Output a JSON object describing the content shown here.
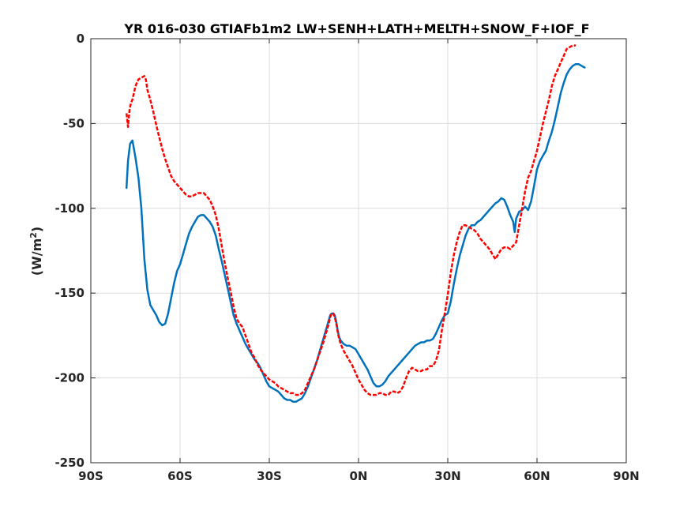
{
  "chart_data": {
    "type": "line",
    "title": "YR 016-030 GTIAFb1m2 LW+SENH+LATH+MELTH+SNOW_F+IOF_F",
    "xlabel": "",
    "ylabel": "(W/m",
    "ylabel_sup": "2",
    "ylabel_close": ")",
    "xlim": [
      -90,
      90
    ],
    "ylim": [
      -250,
      0
    ],
    "x_ticks": [
      -90,
      -60,
      -30,
      0,
      30,
      60,
      90
    ],
    "x_tick_labels": [
      "90S",
      "60S",
      "30S",
      "0N",
      "30N",
      "60N",
      "90N"
    ],
    "y_ticks": [
      0,
      -50,
      -100,
      -150,
      -200,
      -250
    ],
    "y_tick_labels": [
      "0",
      "-50",
      "-100",
      "-150",
      "-200",
      "-250"
    ],
    "grid": true,
    "series": [
      {
        "color": "#0072bd",
        "line_style": "solid",
        "points": [
          [
            -78,
            -88
          ],
          [
            -77.5,
            -72
          ],
          [
            -76.8,
            -62
          ],
          [
            -76,
            -60
          ],
          [
            -75,
            -70
          ],
          [
            -74,
            -82
          ],
          [
            -73,
            -100
          ],
          [
            -72,
            -130
          ],
          [
            -71,
            -148
          ],
          [
            -70,
            -157
          ],
          [
            -69,
            -160
          ],
          [
            -68,
            -163
          ],
          [
            -67,
            -167
          ],
          [
            -66,
            -169
          ],
          [
            -65,
            -168
          ],
          [
            -64,
            -162
          ],
          [
            -63,
            -153
          ],
          [
            -62,
            -144
          ],
          [
            -61,
            -137
          ],
          [
            -60,
            -133
          ],
          [
            -59,
            -127
          ],
          [
            -58,
            -121
          ],
          [
            -57,
            -115
          ],
          [
            -56,
            -111
          ],
          [
            -55,
            -108
          ],
          [
            -54,
            -105
          ],
          [
            -53,
            -104
          ],
          [
            -52,
            -104
          ],
          [
            -51,
            -106
          ],
          [
            -50,
            -108
          ],
          [
            -49,
            -111
          ],
          [
            -48,
            -116
          ],
          [
            -47,
            -124
          ],
          [
            -46,
            -131
          ],
          [
            -45,
            -139
          ],
          [
            -44,
            -147
          ],
          [
            -43,
            -155
          ],
          [
            -42,
            -163
          ],
          [
            -41,
            -168
          ],
          [
            -40,
            -172
          ],
          [
            -39,
            -176
          ],
          [
            -38,
            -180
          ],
          [
            -37,
            -183
          ],
          [
            -36,
            -186
          ],
          [
            -35,
            -189
          ],
          [
            -34,
            -191
          ],
          [
            -33,
            -194
          ],
          [
            -32,
            -198
          ],
          [
            -31,
            -202
          ],
          [
            -30,
            -205
          ],
          [
            -29,
            -206
          ],
          [
            -28,
            -207
          ],
          [
            -27,
            -208
          ],
          [
            -26,
            -210
          ],
          [
            -25,
            -212
          ],
          [
            -24,
            -213
          ],
          [
            -23,
            -213
          ],
          [
            -22,
            -214
          ],
          [
            -21,
            -214
          ],
          [
            -20,
            -213
          ],
          [
            -19,
            -212
          ],
          [
            -18,
            -209
          ],
          [
            -17,
            -205
          ],
          [
            -16,
            -200
          ],
          [
            -15,
            -195
          ],
          [
            -14,
            -190
          ],
          [
            -13,
            -184
          ],
          [
            -12,
            -178
          ],
          [
            -11,
            -172
          ],
          [
            -10,
            -166
          ],
          [
            -9.5,
            -163
          ],
          [
            -9,
            -162
          ],
          [
            -8.5,
            -162
          ],
          [
            -8,
            -163
          ],
          [
            -7.5,
            -167
          ],
          [
            -7,
            -172
          ],
          [
            -6.5,
            -176
          ],
          [
            -6,
            -178
          ],
          [
            -5,
            -180
          ],
          [
            -4,
            -181
          ],
          [
            -3,
            -181
          ],
          [
            -2,
            -182
          ],
          [
            -1,
            -183
          ],
          [
            0,
            -186
          ],
          [
            1,
            -189
          ],
          [
            2,
            -192
          ],
          [
            3,
            -195
          ],
          [
            4,
            -199
          ],
          [
            5,
            -203
          ],
          [
            6,
            -205
          ],
          [
            7,
            -205
          ],
          [
            8,
            -204
          ],
          [
            9,
            -202
          ],
          [
            10,
            -199
          ],
          [
            11,
            -197
          ],
          [
            12,
            -195
          ],
          [
            13,
            -193
          ],
          [
            14,
            -191
          ],
          [
            15,
            -189
          ],
          [
            16,
            -187
          ],
          [
            17,
            -185
          ],
          [
            18,
            -183
          ],
          [
            19,
            -181
          ],
          [
            20,
            -180
          ],
          [
            21,
            -179
          ],
          [
            22,
            -179
          ],
          [
            23,
            -178
          ],
          [
            24,
            -178
          ],
          [
            25,
            -177
          ],
          [
            26,
            -174
          ],
          [
            27,
            -170
          ],
          [
            28,
            -166
          ],
          [
            29,
            -163
          ],
          [
            30,
            -162
          ],
          [
            31,
            -155
          ],
          [
            32,
            -145
          ],
          [
            33,
            -136
          ],
          [
            34,
            -128
          ],
          [
            35,
            -122
          ],
          [
            36,
            -116
          ],
          [
            37,
            -112
          ],
          [
            38,
            -110
          ],
          [
            39,
            -110
          ],
          [
            40,
            -108
          ],
          [
            41,
            -107
          ],
          [
            42,
            -105
          ],
          [
            43,
            -103
          ],
          [
            44,
            -101
          ],
          [
            45,
            -99
          ],
          [
            46,
            -97
          ],
          [
            47,
            -96
          ],
          [
            48,
            -94
          ],
          [
            49,
            -95
          ],
          [
            50,
            -99
          ],
          [
            51,
            -104
          ],
          [
            52,
            -108
          ],
          [
            52.5,
            -114
          ],
          [
            53,
            -106
          ],
          [
            54,
            -102
          ],
          [
            55,
            -101
          ],
          [
            56,
            -99
          ],
          [
            57,
            -101
          ],
          [
            58,
            -96
          ],
          [
            59,
            -87
          ],
          [
            60,
            -77
          ],
          [
            61,
            -72
          ],
          [
            62,
            -69
          ],
          [
            63,
            -66
          ],
          [
            64,
            -60
          ],
          [
            65,
            -55
          ],
          [
            66,
            -48
          ],
          [
            67,
            -40
          ],
          [
            68,
            -32
          ],
          [
            69,
            -26
          ],
          [
            70,
            -21
          ],
          [
            71,
            -18
          ],
          [
            72,
            -16
          ],
          [
            73,
            -15
          ],
          [
            74,
            -15
          ],
          [
            75,
            -16
          ],
          [
            76,
            -17
          ]
        ]
      },
      {
        "color": "#ff0000",
        "line_style": "dashed",
        "points": [
          [
            -78,
            -44
          ],
          [
            -77.5,
            -52
          ],
          [
            -77,
            -42
          ],
          [
            -76.5,
            -38
          ],
          [
            -76,
            -36
          ],
          [
            -75.5,
            -32
          ],
          [
            -75,
            -28
          ],
          [
            -74,
            -24
          ],
          [
            -73,
            -23
          ],
          [
            -72,
            -22
          ],
          [
            -71.5,
            -24
          ],
          [
            -71,
            -30
          ],
          [
            -70,
            -36
          ],
          [
            -69,
            -43
          ],
          [
            -68,
            -51
          ],
          [
            -67,
            -58
          ],
          [
            -66,
            -65
          ],
          [
            -65,
            -71
          ],
          [
            -64,
            -76
          ],
          [
            -63,
            -81
          ],
          [
            -62,
            -84
          ],
          [
            -61,
            -86
          ],
          [
            -60,
            -88
          ],
          [
            -59,
            -90
          ],
          [
            -58,
            -92
          ],
          [
            -57,
            -93
          ],
          [
            -56,
            -93
          ],
          [
            -55,
            -92
          ],
          [
            -54,
            -91
          ],
          [
            -53,
            -91
          ],
          [
            -52,
            -91
          ],
          [
            -51,
            -93
          ],
          [
            -50,
            -95
          ],
          [
            -49,
            -99
          ],
          [
            -48,
            -104
          ],
          [
            -47,
            -112
          ],
          [
            -46,
            -122
          ],
          [
            -45,
            -132
          ],
          [
            -44,
            -141
          ],
          [
            -43,
            -149
          ],
          [
            -42,
            -158
          ],
          [
            -41,
            -165
          ],
          [
            -40,
            -168
          ],
          [
            -39,
            -170
          ],
          [
            -38,
            -175
          ],
          [
            -37,
            -180
          ],
          [
            -36,
            -185
          ],
          [
            -35,
            -188
          ],
          [
            -34,
            -192
          ],
          [
            -33,
            -195
          ],
          [
            -32,
            -197
          ],
          [
            -31,
            -199
          ],
          [
            -30,
            -201
          ],
          [
            -29,
            -202
          ],
          [
            -28,
            -203
          ],
          [
            -27,
            -205
          ],
          [
            -26,
            -206
          ],
          [
            -25,
            -207
          ],
          [
            -24,
            -208
          ],
          [
            -23,
            -209
          ],
          [
            -22,
            -209
          ],
          [
            -21,
            -210
          ],
          [
            -20,
            -210
          ],
          [
            -19,
            -209
          ],
          [
            -18,
            -207
          ],
          [
            -17,
            -203
          ],
          [
            -16,
            -199
          ],
          [
            -15,
            -195
          ],
          [
            -14,
            -190
          ],
          [
            -13,
            -185
          ],
          [
            -12,
            -180
          ],
          [
            -11,
            -174
          ],
          [
            -10,
            -168
          ],
          [
            -9.5,
            -164
          ],
          [
            -9,
            -162
          ],
          [
            -8.5,
            -162
          ],
          [
            -8,
            -164
          ],
          [
            -7.5,
            -168
          ],
          [
            -7,
            -173
          ],
          [
            -6.5,
            -177
          ],
          [
            -6,
            -180
          ],
          [
            -5,
            -184
          ],
          [
            -4,
            -187
          ],
          [
            -3,
            -190
          ],
          [
            -2,
            -193
          ],
          [
            -1,
            -197
          ],
          [
            0,
            -201
          ],
          [
            1,
            -204
          ],
          [
            2,
            -207
          ],
          [
            3,
            -209
          ],
          [
            4,
            -210
          ],
          [
            5,
            -210
          ],
          [
            6,
            -210
          ],
          [
            7,
            -209
          ],
          [
            8,
            -209
          ],
          [
            9,
            -210
          ],
          [
            10,
            -210
          ],
          [
            11,
            -208
          ],
          [
            12,
            -208
          ],
          [
            13,
            -209
          ],
          [
            14,
            -208
          ],
          [
            15,
            -205
          ],
          [
            16,
            -200
          ],
          [
            17,
            -196
          ],
          [
            18,
            -194
          ],
          [
            19,
            -195
          ],
          [
            20,
            -196
          ],
          [
            21,
            -196
          ],
          [
            22,
            -195
          ],
          [
            23,
            -195
          ],
          [
            24,
            -193
          ],
          [
            25,
            -193
          ],
          [
            26,
            -190
          ],
          [
            27,
            -184
          ],
          [
            28,
            -172
          ],
          [
            29,
            -162
          ],
          [
            30,
            -151
          ],
          [
            31,
            -138
          ],
          [
            32,
            -128
          ],
          [
            33,
            -120
          ],
          [
            34,
            -114
          ],
          [
            35,
            -110
          ],
          [
            36,
            -110
          ],
          [
            37,
            -111
          ],
          [
            38,
            -112
          ],
          [
            39,
            -113
          ],
          [
            40,
            -115
          ],
          [
            41,
            -118
          ],
          [
            42,
            -120
          ],
          [
            43,
            -122
          ],
          [
            44,
            -124
          ],
          [
            45,
            -127
          ],
          [
            46,
            -130
          ],
          [
            47,
            -127
          ],
          [
            48,
            -124
          ],
          [
            49,
            -123
          ],
          [
            50,
            -123
          ],
          [
            51,
            -124
          ],
          [
            52,
            -122
          ],
          [
            53,
            -120
          ],
          [
            54,
            -110
          ],
          [
            55,
            -100
          ],
          [
            56,
            -90
          ],
          [
            57,
            -82
          ],
          [
            58,
            -78
          ],
          [
            59,
            -72
          ],
          [
            60,
            -66
          ],
          [
            61,
            -58
          ],
          [
            62,
            -50
          ],
          [
            63,
            -43
          ],
          [
            64,
            -36
          ],
          [
            65,
            -28
          ],
          [
            66,
            -22
          ],
          [
            67,
            -18
          ],
          [
            68,
            -14
          ],
          [
            69,
            -10
          ],
          [
            70,
            -6
          ],
          [
            71,
            -5
          ],
          [
            72,
            -4
          ],
          [
            73,
            -4
          ]
        ]
      }
    ]
  }
}
